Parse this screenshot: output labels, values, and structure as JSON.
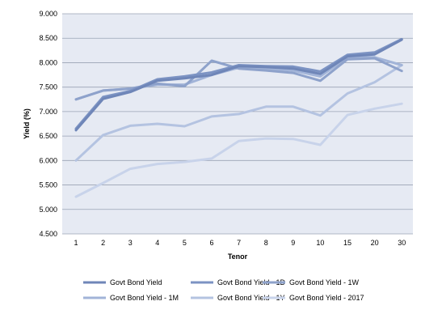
{
  "chart_data": {
    "type": "line",
    "title": "",
    "xlabel": "Tenor",
    "ylabel": "Yield (%)",
    "categories": [
      "1",
      "2",
      "3",
      "4",
      "5",
      "6",
      "7",
      "8",
      "9",
      "10",
      "15",
      "20",
      "30"
    ],
    "ylim": [
      4.5,
      9.0
    ],
    "yticks": [
      "4.500",
      "5.000",
      "5.500",
      "6.000",
      "6.500",
      "7.000",
      "7.500",
      "8.000",
      "8.500",
      "9.000"
    ],
    "grid": true,
    "legend_position": "bottom",
    "series": [
      {
        "name": "Govt Bond Yield",
        "color": "#6f86b8",
        "values": [
          6.62,
          7.26,
          7.4,
          7.63,
          7.68,
          7.75,
          7.93,
          7.91,
          7.88,
          7.77,
          8.13,
          8.17,
          8.47
        ]
      },
      {
        "name": "Govt Bond Yield - 1D",
        "color": "#7c93c3",
        "values": [
          6.65,
          7.3,
          7.42,
          7.66,
          7.72,
          7.8,
          7.95,
          7.93,
          7.92,
          7.82,
          8.16,
          8.21,
          8.48
        ]
      },
      {
        "name": "Govt Bond Yield - 1W",
        "color": "#8ea2cb",
        "values": [
          7.25,
          7.43,
          7.47,
          7.57,
          7.52,
          8.04,
          7.88,
          7.84,
          7.79,
          7.63,
          8.07,
          8.09,
          7.83
        ]
      },
      {
        "name": "Govt Bond Yield - 1M",
        "color": "#a2b4d8",
        "values": [
          7.25,
          7.43,
          7.47,
          7.55,
          7.55,
          7.75,
          7.9,
          7.88,
          7.84,
          7.72,
          8.11,
          8.11,
          7.95
        ]
      },
      {
        "name": "Govt Bond Yield - 1Y",
        "color": "#b4c3e1",
        "values": [
          6.0,
          6.52,
          6.71,
          6.75,
          6.7,
          6.9,
          6.95,
          7.1,
          7.1,
          6.92,
          7.37,
          7.6,
          7.95
        ]
      },
      {
        "name": "Govt Bond Yield - 2017",
        "color": "#c8d3ea",
        "values": [
          5.26,
          5.54,
          5.83,
          5.93,
          5.97,
          6.04,
          6.4,
          6.45,
          6.44,
          6.32,
          6.93,
          7.06,
          7.16
        ]
      }
    ]
  }
}
